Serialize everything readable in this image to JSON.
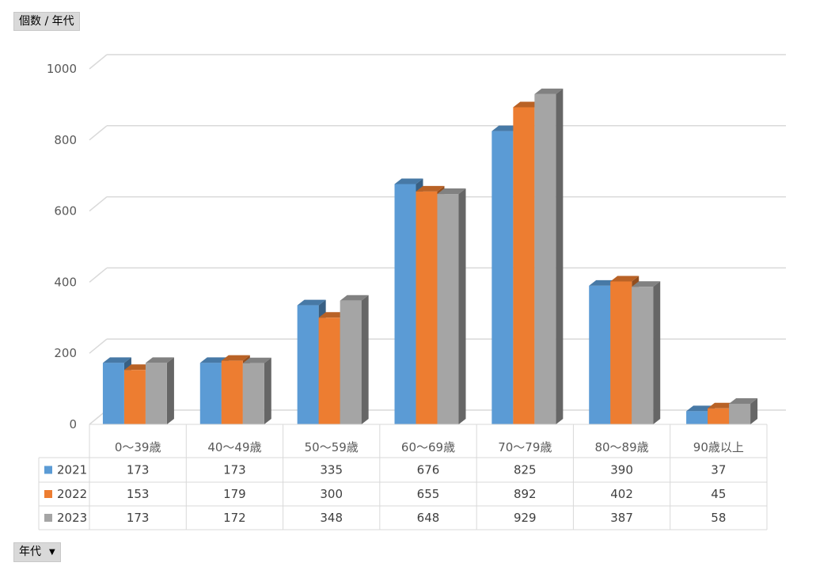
{
  "pivot": {
    "value_field_label": "個数 / 年代",
    "row_field_label": "年代",
    "row_field_dropdown_icon": "dropdown-arrow-icon"
  },
  "chart_data": {
    "type": "bar",
    "style": "3d-clustered-column-with-data-table",
    "title": "",
    "xlabel": "",
    "ylabel": "",
    "ylim": [
      0,
      1000
    ],
    "yticks": [
      0,
      200,
      400,
      600,
      800,
      1000
    ],
    "grid": true,
    "categories": [
      "0～39歳",
      "40～49歳",
      "50～59歳",
      "60～69歳",
      "70～79歳",
      "80～89歳",
      "90歳以上"
    ],
    "series": [
      {
        "name": "2021",
        "color": "#5b9bd5",
        "values": [
          173,
          173,
          335,
          676,
          825,
          390,
          37
        ]
      },
      {
        "name": "2022",
        "color": "#ed7d31",
        "values": [
          153,
          179,
          300,
          655,
          892,
          402,
          45
        ]
      },
      {
        "name": "2023",
        "color": "#a5a5a5",
        "values": [
          173,
          172,
          348,
          648,
          929,
          387,
          58
        ]
      }
    ]
  }
}
